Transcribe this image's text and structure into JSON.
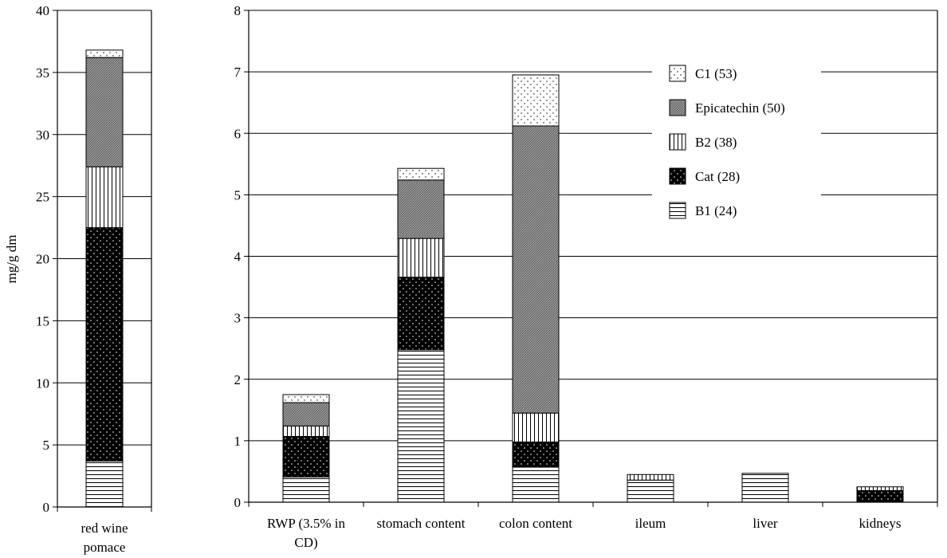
{
  "chart_data": [
    {
      "type": "bar",
      "stacked": true,
      "ylabel": "mg/g dm",
      "ylim": [
        0,
        40
      ],
      "yticks": [
        0,
        5,
        10,
        15,
        20,
        25,
        30,
        35,
        40
      ],
      "grid": true,
      "categories": [
        [
          "red wine",
          "pomace"
        ]
      ],
      "series": [
        {
          "name": "B1 (24)",
          "values": [
            3.7
          ]
        },
        {
          "name": "Cat (28)",
          "values": [
            18.8
          ]
        },
        {
          "name": "B2 (38)",
          "values": [
            4.9
          ]
        },
        {
          "name": "Epicatechin (50)",
          "values": [
            8.8
          ]
        },
        {
          "name": "C1 (53)",
          "values": [
            0.6
          ]
        }
      ]
    },
    {
      "type": "bar",
      "stacked": true,
      "ylim": [
        0,
        8
      ],
      "yticks": [
        0,
        1,
        2,
        3,
        4,
        5,
        6,
        7,
        8
      ],
      "grid": true,
      "legend_position": "top-right",
      "categories": [
        [
          "RWP (3.5% in",
          "CD)"
        ],
        [
          "stomach content"
        ],
        [
          "colon content"
        ],
        [
          "ileum"
        ],
        [
          "liver"
        ],
        [
          "kidneys"
        ]
      ],
      "series": [
        {
          "name": "B1 (24)",
          "values": [
            0.41,
            2.48,
            0.57,
            0.36,
            0.47,
            0.0
          ]
        },
        {
          "name": "Cat (28)",
          "values": [
            0.66,
            1.18,
            0.41,
            0.0,
            0.0,
            0.19
          ]
        },
        {
          "name": "B2 (38)",
          "values": [
            0.17,
            0.63,
            0.47,
            0.09,
            0.0,
            0.06
          ]
        },
        {
          "name": "Epicatechin (50)",
          "values": [
            0.38,
            0.95,
            4.67,
            0.0,
            0.0,
            0.0
          ]
        },
        {
          "name": "C1 (53)",
          "values": [
            0.13,
            0.19,
            0.83,
            0.0,
            0.0,
            0.0
          ]
        }
      ]
    }
  ]
}
